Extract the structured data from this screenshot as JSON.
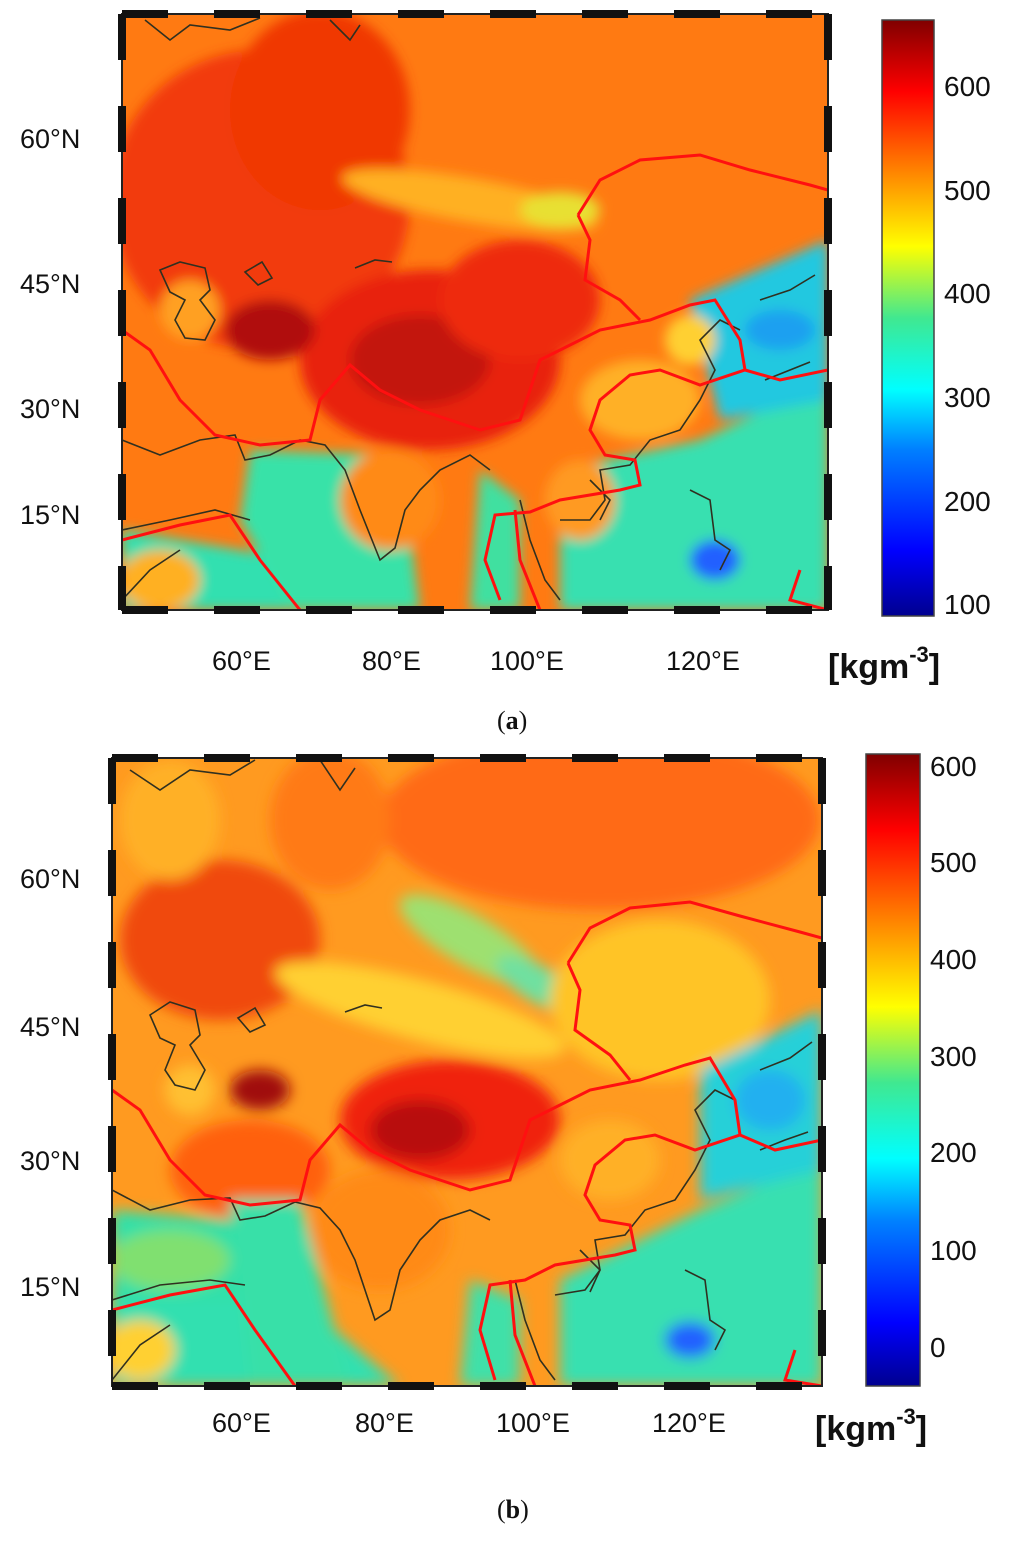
{
  "panels": [
    {
      "id": "a",
      "caption_letter": "a",
      "lat_labels": [
        "60°N",
        "45°N",
        "30°N",
        "15°N"
      ],
      "lon_labels": [
        "60°E",
        "80°E",
        "100°E",
        "120°E"
      ],
      "colorbar": {
        "ticks": [
          "600",
          "500",
          "400",
          "300",
          "200",
          "100"
        ],
        "units_base": "[kgm",
        "units_exp": "-3",
        "units_close": "]"
      }
    },
    {
      "id": "b",
      "caption_letter": "b",
      "lat_labels": [
        "60°N",
        "45°N",
        "30°N",
        "15°N"
      ],
      "lon_labels": [
        "60°E",
        "80°E",
        "100°E",
        "120°E"
      ],
      "colorbar": {
        "ticks": [
          "600",
          "500",
          "400",
          "300",
          "200",
          "100",
          "0"
        ],
        "units_base": "[kgm",
        "units_exp": "-3",
        "units_close": "]"
      }
    }
  ],
  "colormap": [
    "#00008f",
    "#0000ff",
    "#0080ff",
    "#00ffff",
    "#80ff80",
    "#ffff00",
    "#ff8000",
    "#ff0000",
    "#800000"
  ]
}
